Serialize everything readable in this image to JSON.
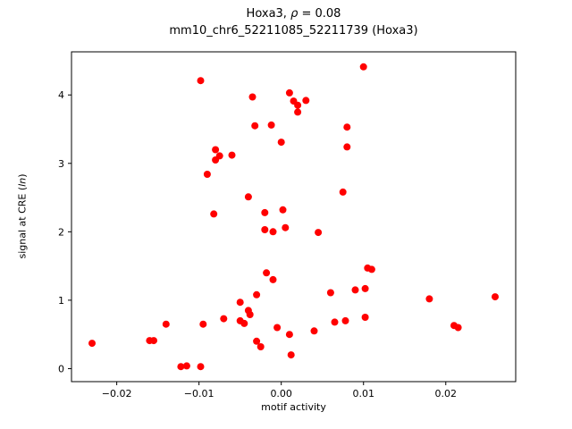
{
  "chart_data": {
    "type": "scatter",
    "title": "Hoxa3, ρ = 0.08",
    "title_parts": [
      "Hoxa3, ",
      "ρ",
      " = 0.08"
    ],
    "rho": 0.08,
    "subtitle": "mm10_chr6_52211085_52211739 (Hoxa3)",
    "xlabel": "motif activity",
    "ylabel": "signal at CRE (ln)",
    "ylabel_parts": [
      "signal at CRE (",
      "ln",
      ")"
    ],
    "xlim": [
      -0.0255,
      0.0285
    ],
    "ylim": [
      -0.19,
      4.63
    ],
    "xticks": {
      "values": [
        -0.02,
        -0.01,
        0.0,
        0.01,
        0.02
      ],
      "labels": [
        "−0.02",
        "−0.01",
        "0.00",
        "0.01",
        "0.02"
      ]
    },
    "yticks": {
      "values": [
        0,
        1,
        2,
        3,
        4
      ],
      "labels": [
        "0",
        "1",
        "2",
        "3",
        "4"
      ]
    },
    "grid": false,
    "legend": null,
    "marker": {
      "color": "#ff0000",
      "radius": 4
    },
    "points": [
      [
        -0.023,
        0.37
      ],
      [
        -0.016,
        0.41
      ],
      [
        -0.0155,
        0.41
      ],
      [
        -0.014,
        0.65
      ],
      [
        -0.0122,
        0.03
      ],
      [
        -0.0115,
        0.04
      ],
      [
        -0.0098,
        4.21
      ],
      [
        -0.0098,
        0.03
      ],
      [
        -0.0095,
        0.65
      ],
      [
        -0.009,
        2.84
      ],
      [
        -0.008,
        3.2
      ],
      [
        -0.008,
        3.05
      ],
      [
        -0.0082,
        2.26
      ],
      [
        -0.0075,
        3.11
      ],
      [
        -0.007,
        0.73
      ],
      [
        -0.006,
        3.12
      ],
      [
        -0.005,
        0.97
      ],
      [
        -0.005,
        0.7
      ],
      [
        -0.0045,
        0.66
      ],
      [
        -0.004,
        2.51
      ],
      [
        -0.004,
        0.85
      ],
      [
        -0.0038,
        0.79
      ],
      [
        -0.0035,
        3.97
      ],
      [
        -0.0032,
        3.55
      ],
      [
        -0.003,
        1.08
      ],
      [
        -0.003,
        0.4
      ],
      [
        -0.0025,
        0.32
      ],
      [
        -0.002,
        2.28
      ],
      [
        -0.002,
        2.03
      ],
      [
        -0.0018,
        1.4
      ],
      [
        -0.0012,
        3.56
      ],
      [
        -0.001,
        2.0
      ],
      [
        -0.001,
        1.3
      ],
      [
        -0.0005,
        0.6
      ],
      [
        0.0,
        3.31
      ],
      [
        0.0002,
        2.32
      ],
      [
        0.0005,
        2.06
      ],
      [
        0.001,
        4.03
      ],
      [
        0.001,
        0.5
      ],
      [
        0.0012,
        0.2
      ],
      [
        0.0015,
        3.91
      ],
      [
        0.002,
        3.85
      ],
      [
        0.002,
        3.75
      ],
      [
        0.003,
        3.92
      ],
      [
        0.004,
        0.55
      ],
      [
        0.0045,
        1.99
      ],
      [
        0.006,
        1.11
      ],
      [
        0.0065,
        0.68
      ],
      [
        0.0075,
        2.58
      ],
      [
        0.0078,
        0.7
      ],
      [
        0.008,
        3.53
      ],
      [
        0.008,
        3.24
      ],
      [
        0.009,
        1.15
      ],
      [
        0.01,
        4.41
      ],
      [
        0.0102,
        1.17
      ],
      [
        0.0102,
        0.75
      ],
      [
        0.0105,
        1.47
      ],
      [
        0.011,
        1.45
      ],
      [
        0.018,
        1.02
      ],
      [
        0.021,
        0.63
      ],
      [
        0.0215,
        0.6
      ],
      [
        0.026,
        1.05
      ]
    ]
  }
}
